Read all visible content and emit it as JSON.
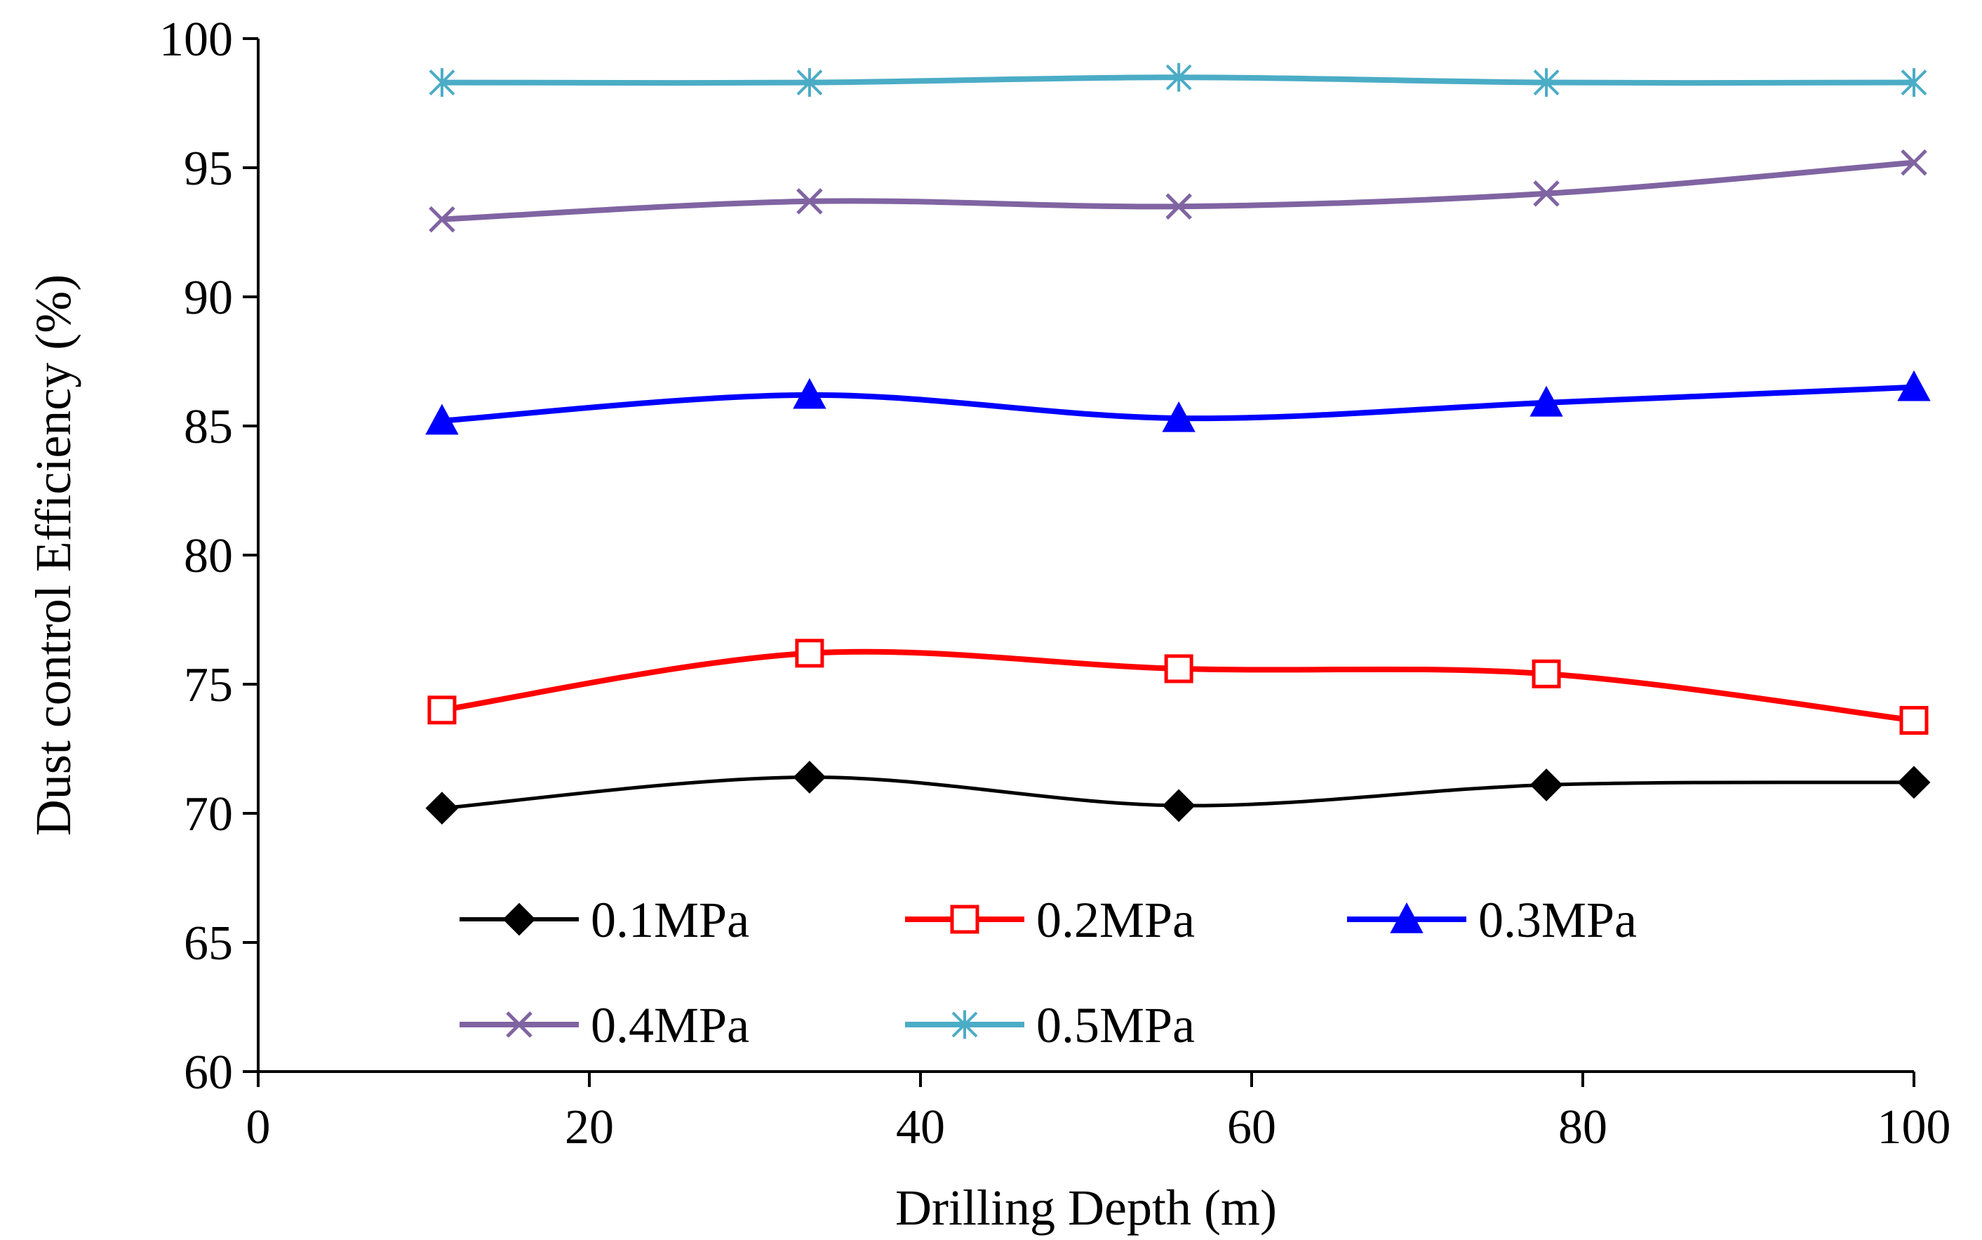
{
  "chart_data": {
    "type": "line",
    "title": "",
    "xlabel": "Drilling Depth (m)",
    "ylabel": "Dust control Efficiency (%)",
    "xlim": [
      0,
      100
    ],
    "ylim": [
      60,
      100
    ],
    "x_ticks": [
      0,
      20,
      40,
      60,
      80,
      100
    ],
    "y_ticks": [
      60,
      65,
      70,
      75,
      80,
      85,
      90,
      95,
      100
    ],
    "grid": false,
    "legend_position": "bottom-left inside plot",
    "x": [
      11.1,
      33.3,
      55.6,
      77.8,
      100
    ],
    "series": [
      {
        "name": "0.1MPa",
        "color": "#000000",
        "marker": "diamond-filled",
        "values": [
          70.2,
          71.4,
          70.3,
          71.1,
          71.2
        ]
      },
      {
        "name": "0.2MPa",
        "color": "#ff0000",
        "marker": "square-open",
        "values": [
          74.0,
          76.2,
          75.6,
          75.4,
          73.6
        ]
      },
      {
        "name": "0.3MPa",
        "color": "#0000ff",
        "marker": "triangle-filled",
        "values": [
          85.2,
          86.2,
          85.3,
          85.9,
          86.5
        ]
      },
      {
        "name": "0.4MPa",
        "color": "#8064a2",
        "marker": "x",
        "values": [
          93.0,
          93.7,
          93.5,
          94.0,
          95.2
        ]
      },
      {
        "name": "0.5MPa",
        "color": "#4bacc6",
        "marker": "asterisk",
        "values": [
          98.3,
          98.3,
          98.5,
          98.3,
          98.3
        ]
      }
    ]
  }
}
